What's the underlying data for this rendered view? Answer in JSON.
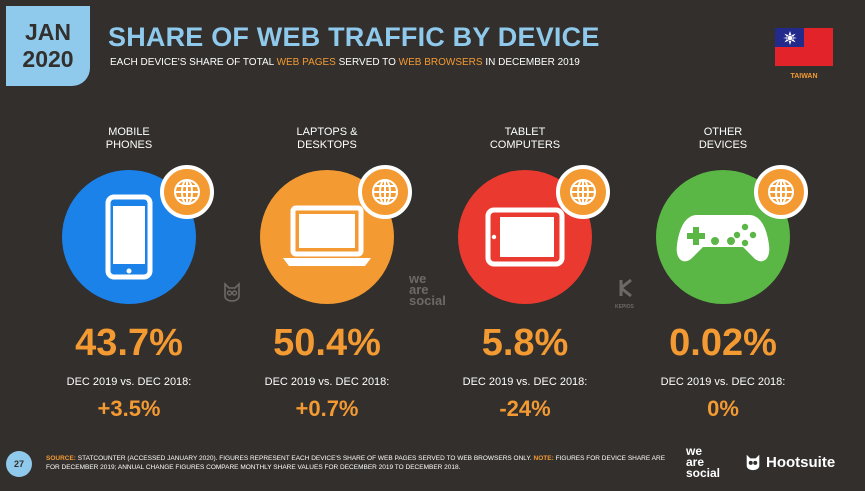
{
  "header": {
    "date_month": "JAN",
    "date_year": "2020",
    "title": "SHARE OF WEB TRAFFIC BY DEVICE",
    "subtitle_parts": {
      "a": "EACH DEVICE'S SHARE OF TOTAL ",
      "b": "WEB PAGES",
      "c": " SERVED TO ",
      "d": "WEB BROWSERS",
      "e": " IN DECEMBER 2019"
    },
    "country": "TAIWAN"
  },
  "devices": [
    {
      "label": "MOBILE\nPHONES",
      "share": "43.7%",
      "comparison_label": "DEC 2019 vs. DEC 2018:",
      "change": "+3.5%",
      "color": "#1a82e8",
      "icon": "mobile-phone-icon"
    },
    {
      "label": "LAPTOPS &\nDESKTOPS",
      "share": "50.4%",
      "comparison_label": "DEC 2019 vs. DEC 2018:",
      "change": "+0.7%",
      "color": "#f49a33",
      "icon": "laptop-icon"
    },
    {
      "label": "TABLET\nCOMPUTERS",
      "share": "5.8%",
      "comparison_label": "DEC 2019 vs. DEC 2018:",
      "change": "-24%",
      "color": "#ea3a2f",
      "icon": "tablet-icon"
    },
    {
      "label": "OTHER\nDEVICES",
      "share": "0.02%",
      "comparison_label": "DEC 2019 vs. DEC 2018:",
      "change": "0%",
      "color": "#5ab645",
      "icon": "game-controller-icon"
    }
  ],
  "watermarks": {
    "we_are_social": "we\nare\nsocial",
    "kepios": "KEPIOS"
  },
  "footer": {
    "page_number": "27",
    "source_key": "SOURCE:",
    "source_text": " STATCOUNTER (ACCESSED JANUARY 2020). FIGURES REPRESENT EACH DEVICE'S SHARE OF WEB PAGES SERVED TO WEB BROWSERS ONLY. ",
    "note_key": "NOTE:",
    "note_text": " FIGURES FOR DEVICE SHARE ARE FOR DECEMBER 2019; ANNUAL CHANGE FIGURES COMPARE MONTHLY SHARE VALUES FOR DECEMBER 2019 TO DECEMBER 2018.",
    "brand_was": "we\nare\nsocial",
    "brand_hootsuite": "Hootsuite"
  },
  "colors": {
    "background": "#322f2c",
    "accent_blue": "#8fc9ec",
    "accent_orange": "#f49a33"
  }
}
